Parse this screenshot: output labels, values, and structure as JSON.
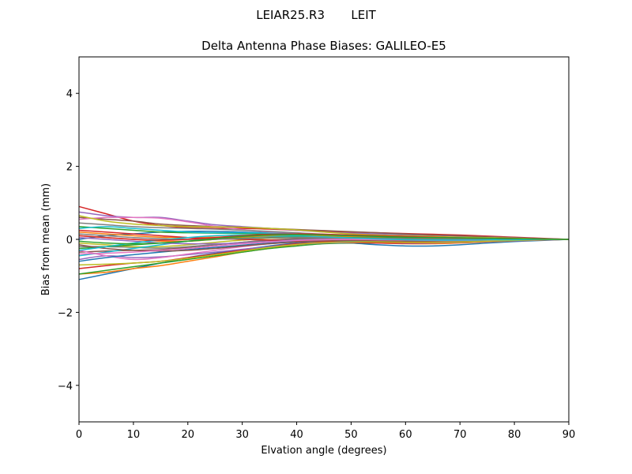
{
  "figure": {
    "suptitle": "LEIAR25.R3       LEIT"
  },
  "chart_data": {
    "type": "line",
    "title": "Delta Antenna Phase Biases: GALILEO-E5",
    "xlabel": "Elvation angle (degrees)",
    "ylabel": "Bias from mean (mm)",
    "xlim": [
      0,
      90
    ],
    "ylim": [
      -5,
      5
    ],
    "xticks": [
      0,
      10,
      20,
      30,
      40,
      50,
      60,
      70,
      80,
      90
    ],
    "yticks": [
      -4,
      -2,
      0,
      2,
      4
    ],
    "ytick_labels": [
      "−4",
      "−2",
      "0",
      "2",
      "4"
    ],
    "grid": false,
    "x": [
      0,
      5,
      10,
      15,
      20,
      25,
      30,
      35,
      40,
      45,
      50,
      55,
      60,
      65,
      70,
      75,
      80,
      85,
      90
    ],
    "series": [
      {
        "color": "#1f77b4",
        "values": [
          -1.1,
          -0.95,
          -0.8,
          -0.65,
          -0.5,
          -0.38,
          -0.28,
          -0.18,
          -0.1,
          -0.08,
          -0.1,
          -0.15,
          -0.18,
          -0.18,
          -0.15,
          -0.1,
          -0.06,
          -0.03,
          0
        ]
      },
      {
        "color": "#ff7f0e",
        "values": [
          -0.95,
          -0.9,
          -0.8,
          -0.72,
          -0.6,
          -0.48,
          -0.35,
          -0.25,
          -0.15,
          -0.1,
          -0.08,
          -0.1,
          -0.12,
          -0.12,
          -0.1,
          -0.07,
          -0.04,
          -0.02,
          0
        ]
      },
      {
        "color": "#2ca02c",
        "values": [
          -0.95,
          -0.85,
          -0.75,
          -0.65,
          -0.55,
          -0.45,
          -0.35,
          -0.25,
          -0.18,
          -0.12,
          -0.1,
          -0.1,
          -0.1,
          -0.09,
          -0.07,
          -0.05,
          -0.03,
          -0.01,
          0
        ]
      },
      {
        "color": "#d62728",
        "values": [
          -0.8,
          -0.72,
          -0.65,
          -0.6,
          -0.5,
          -0.4,
          -0.3,
          -0.2,
          -0.12,
          -0.08,
          -0.06,
          -0.06,
          -0.06,
          -0.05,
          -0.04,
          -0.03,
          -0.02,
          -0.01,
          0
        ]
      },
      {
        "color": "#9467bd",
        "values": [
          -0.55,
          -0.45,
          -0.5,
          -0.48,
          -0.42,
          -0.35,
          -0.27,
          -0.2,
          -0.14,
          -0.1,
          -0.09,
          -0.1,
          -0.11,
          -0.1,
          -0.08,
          -0.06,
          -0.04,
          -0.02,
          0
        ]
      },
      {
        "color": "#8c564b",
        "values": [
          -0.35,
          -0.32,
          -0.3,
          -0.28,
          -0.22,
          -0.15,
          -0.08,
          -0.02,
          0.02,
          0.03,
          0.02,
          0.0,
          -0.02,
          -0.03,
          -0.03,
          -0.02,
          -0.01,
          0.0,
          0
        ]
      },
      {
        "color": "#e377c2",
        "values": [
          -0.3,
          -0.45,
          -0.55,
          -0.5,
          -0.4,
          -0.3,
          -0.2,
          -0.12,
          -0.06,
          -0.03,
          -0.03,
          -0.05,
          -0.07,
          -0.07,
          -0.06,
          -0.04,
          -0.03,
          -0.01,
          0
        ]
      },
      {
        "color": "#7f7f7f",
        "values": [
          -0.2,
          -0.2,
          -0.22,
          -0.24,
          -0.2,
          -0.14,
          -0.08,
          -0.03,
          0.0,
          0.02,
          0.02,
          0.01,
          0.0,
          -0.01,
          -0.01,
          -0.01,
          0.0,
          0.0,
          0
        ]
      },
      {
        "color": "#bcbd22",
        "values": [
          -0.1,
          -0.15,
          -0.2,
          -0.2,
          -0.15,
          -0.08,
          -0.02,
          0.03,
          0.05,
          0.05,
          0.04,
          0.02,
          0.01,
          0.0,
          0.0,
          0.0,
          0.0,
          0.0,
          0
        ]
      },
      {
        "color": "#17becf",
        "values": [
          -0.45,
          -0.35,
          -0.25,
          -0.15,
          -0.05,
          0.02,
          0.06,
          0.08,
          0.08,
          0.06,
          0.04,
          0.02,
          0.0,
          -0.01,
          -0.01,
          -0.01,
          0.0,
          0.0,
          0
        ]
      },
      {
        "color": "#1f77b4",
        "values": [
          0.0,
          0.1,
          0.15,
          0.2,
          0.22,
          0.22,
          0.2,
          0.18,
          0.14,
          0.1,
          0.07,
          0.05,
          0.04,
          0.03,
          0.02,
          0.02,
          0.01,
          0.0,
          0
        ]
      },
      {
        "color": "#ff7f0e",
        "values": [
          0.1,
          0.05,
          0.0,
          -0.05,
          -0.05,
          0.0,
          0.06,
          0.1,
          0.12,
          0.12,
          0.1,
          0.07,
          0.05,
          0.03,
          0.02,
          0.01,
          0.01,
          0.0,
          0
        ]
      },
      {
        "color": "#2ca02c",
        "values": [
          0.35,
          0.3,
          0.25,
          0.2,
          0.18,
          0.17,
          0.16,
          0.15,
          0.13,
          0.1,
          0.08,
          0.06,
          0.05,
          0.04,
          0.03,
          0.02,
          0.01,
          0.0,
          0
        ]
      },
      {
        "color": "#d62728",
        "values": [
          0.9,
          0.7,
          0.5,
          0.38,
          0.32,
          0.3,
          0.3,
          0.28,
          0.25,
          0.22,
          0.2,
          0.18,
          0.16,
          0.14,
          0.12,
          0.09,
          0.06,
          0.03,
          0
        ]
      },
      {
        "color": "#9467bd",
        "values": [
          0.75,
          0.65,
          0.6,
          0.6,
          0.5,
          0.4,
          0.35,
          0.3,
          0.25,
          0.2,
          0.17,
          0.15,
          0.13,
          0.11,
          0.09,
          0.07,
          0.05,
          0.02,
          0
        ]
      },
      {
        "color": "#8c564b",
        "values": [
          0.6,
          0.55,
          0.5,
          0.42,
          0.38,
          0.35,
          0.33,
          0.3,
          0.27,
          0.24,
          0.21,
          0.18,
          0.15,
          0.12,
          0.1,
          0.07,
          0.05,
          0.02,
          0
        ]
      },
      {
        "color": "#e377c2",
        "values": [
          0.55,
          0.6,
          0.6,
          0.58,
          0.48,
          0.36,
          0.27,
          0.2,
          0.15,
          0.12,
          0.1,
          0.08,
          0.07,
          0.06,
          0.05,
          0.04,
          0.03,
          0.01,
          0
        ]
      },
      {
        "color": "#7f7f7f",
        "values": [
          0.45,
          0.4,
          0.35,
          0.32,
          0.3,
          0.28,
          0.25,
          0.22,
          0.18,
          0.14,
          0.1,
          0.08,
          0.06,
          0.05,
          0.04,
          0.03,
          0.02,
          0.01,
          0
        ]
      },
      {
        "color": "#bcbd22",
        "values": [
          0.65,
          0.5,
          0.42,
          0.38,
          0.35,
          0.34,
          0.33,
          0.3,
          0.26,
          0.2,
          0.15,
          0.12,
          0.1,
          0.08,
          0.06,
          0.05,
          0.03,
          0.01,
          0
        ]
      },
      {
        "color": "#17becf",
        "values": [
          0.3,
          0.35,
          0.3,
          0.25,
          0.2,
          0.18,
          0.18,
          0.17,
          0.15,
          0.12,
          0.1,
          0.08,
          0.06,
          0.05,
          0.04,
          0.03,
          0.02,
          0.01,
          0
        ]
      },
      {
        "color": "#1f77b4",
        "values": [
          -0.6,
          -0.5,
          -0.42,
          -0.35,
          -0.28,
          -0.22,
          -0.16,
          -0.1,
          -0.06,
          -0.04,
          -0.04,
          -0.05,
          -0.06,
          -0.06,
          -0.05,
          -0.04,
          -0.03,
          -0.01,
          0
        ]
      },
      {
        "color": "#ff7f0e",
        "values": [
          0.2,
          0.15,
          0.1,
          0.06,
          0.05,
          0.06,
          0.08,
          0.1,
          0.1,
          0.09,
          0.07,
          0.05,
          0.04,
          0.03,
          0.02,
          0.01,
          0.01,
          0.0,
          0
        ]
      },
      {
        "color": "#2ca02c",
        "values": [
          -0.25,
          -0.2,
          -0.15,
          -0.1,
          -0.05,
          0.0,
          0.03,
          0.05,
          0.06,
          0.06,
          0.05,
          0.04,
          0.03,
          0.02,
          0.01,
          0.01,
          0.0,
          0.0,
          0
        ]
      },
      {
        "color": "#d62728",
        "values": [
          0.25,
          0.2,
          0.15,
          0.1,
          0.05,
          0.02,
          0.0,
          -0.02,
          -0.04,
          -0.06,
          -0.08,
          -0.1,
          -0.1,
          -0.09,
          -0.07,
          -0.05,
          -0.03,
          -0.01,
          0
        ]
      },
      {
        "color": "#9467bd",
        "values": [
          0.05,
          0.0,
          -0.05,
          -0.1,
          -0.12,
          -0.12,
          -0.1,
          -0.06,
          -0.02,
          0.0,
          0.0,
          -0.02,
          -0.04,
          -0.05,
          -0.05,
          -0.04,
          -0.02,
          -0.01,
          0
        ]
      },
      {
        "color": "#8c564b",
        "values": [
          -0.15,
          -0.25,
          -0.3,
          -0.32,
          -0.3,
          -0.25,
          -0.18,
          -0.12,
          -0.07,
          -0.04,
          -0.03,
          -0.04,
          -0.05,
          -0.05,
          -0.04,
          -0.03,
          -0.02,
          -0.01,
          0
        ]
      },
      {
        "color": "#e377c2",
        "values": [
          -0.4,
          -0.38,
          -0.35,
          -0.3,
          -0.25,
          -0.18,
          -0.12,
          -0.07,
          -0.03,
          -0.01,
          0.0,
          -0.01,
          -0.02,
          -0.03,
          -0.03,
          -0.02,
          -0.01,
          0.0,
          0
        ]
      },
      {
        "color": "#7f7f7f",
        "values": [
          0.15,
          0.1,
          0.05,
          0.02,
          0.0,
          0.0,
          0.02,
          0.04,
          0.05,
          0.05,
          0.04,
          0.03,
          0.02,
          0.02,
          0.01,
          0.01,
          0.0,
          0.0,
          0
        ]
      },
      {
        "color": "#bcbd22",
        "values": [
          -0.7,
          -0.68,
          -0.65,
          -0.6,
          -0.52,
          -0.42,
          -0.32,
          -0.22,
          -0.14,
          -0.09,
          -0.07,
          -0.07,
          -0.08,
          -0.08,
          -0.07,
          -0.05,
          -0.03,
          -0.01,
          0
        ]
      },
      {
        "color": "#17becf",
        "values": [
          -0.3,
          -0.2,
          -0.1,
          -0.02,
          0.05,
          0.1,
          0.12,
          0.12,
          0.1,
          0.07,
          0.04,
          0.01,
          -0.01,
          -0.02,
          -0.02,
          -0.01,
          -0.01,
          0.0,
          0
        ]
      },
      {
        "color": "#d62728",
        "values": [
          0.1,
          0.05,
          0.0,
          -0.02,
          0.0,
          0.05,
          0.1,
          0.14,
          0.15,
          0.14,
          0.12,
          0.1,
          0.08,
          0.06,
          0.04,
          0.03,
          0.02,
          0.01,
          0
        ]
      },
      {
        "color": "#2ca02c",
        "values": [
          -0.05,
          -0.1,
          -0.12,
          -0.1,
          -0.05,
          0.02,
          0.08,
          0.12,
          0.13,
          0.12,
          0.1,
          0.08,
          0.06,
          0.05,
          0.04,
          0.03,
          0.02,
          0.01,
          0
        ]
      }
    ]
  }
}
